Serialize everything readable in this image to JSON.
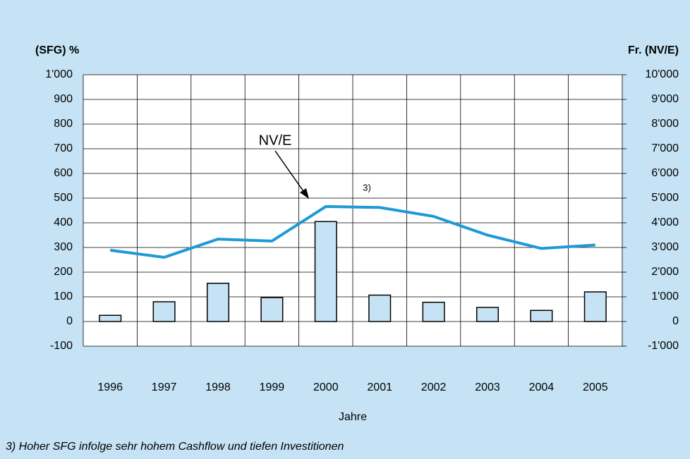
{
  "chart_data": {
    "type": "combo",
    "ylabel": "(SFG) %",
    "y2label": "Fr. (NV/E)",
    "xlabel": "Jahre",
    "categories": [
      "1996",
      "1997",
      "1998",
      "1999",
      "2000",
      "2001",
      "2002",
      "2003",
      "2004",
      "2005"
    ],
    "series": [
      {
        "type": "bar",
        "color": "#c5e3f4",
        "values": [
          25,
          80,
          155,
          97,
          405,
          107,
          78,
          57,
          45,
          120
        ]
      },
      {
        "type": "line",
        "axis": "y2",
        "color": "#1e9ad6",
        "values": [
          2890,
          2600,
          3340,
          3260,
          4660,
          4620,
          4260,
          3500,
          2960,
          3100
        ]
      }
    ],
    "ylim": [
      -100,
      1000
    ],
    "yticks": [
      -100,
      0,
      100,
      200,
      300,
      400,
      500,
      600,
      700,
      800,
      900,
      {
        "value": 1000,
        "label": "1'000"
      }
    ],
    "y2lim": [
      -1000,
      10000
    ],
    "y2ticks": [
      {
        "value": -1000,
        "label": "-1'000"
      },
      0,
      {
        "value": 1000,
        "label": "1'000"
      },
      {
        "value": 2000,
        "label": "2'000"
      },
      {
        "value": 3000,
        "label": "3'000"
      },
      {
        "value": 4000,
        "label": "4'000"
      },
      {
        "value": 5000,
        "label": "5'000"
      },
      {
        "value": 6000,
        "label": "6'000"
      },
      {
        "value": 7000,
        "label": "7'000"
      },
      {
        "value": 8000,
        "label": "8'000"
      },
      {
        "value": 9000,
        "label": "9'000"
      },
      {
        "value": 10000,
        "label": "10'000"
      }
    ],
    "grid": true,
    "annotations": [
      "NV/E",
      "3)"
    ],
    "footnote": "3) Hoher SFG infolge sehr hohem Cashflow und tiefen Investitionen"
  }
}
